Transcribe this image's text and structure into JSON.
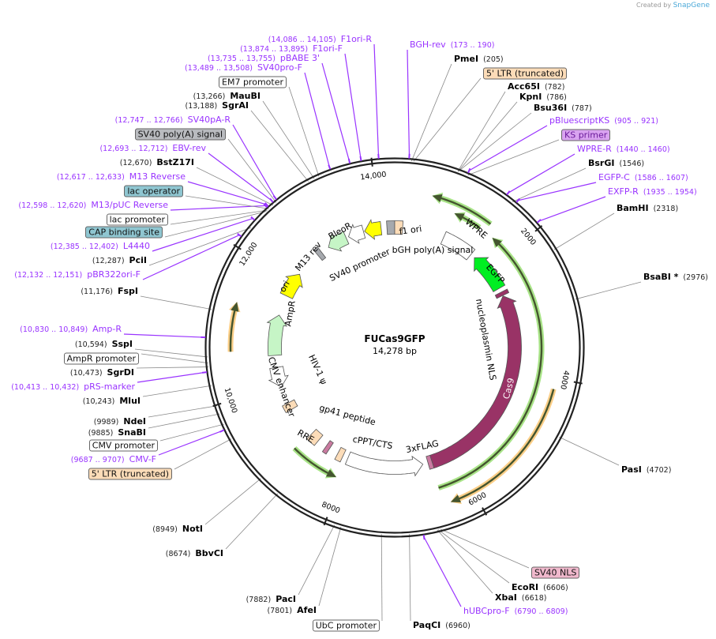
{
  "credit": {
    "prefix": "Created by",
    "brand": "SnapGene"
  },
  "plasmid": {
    "name": "FUCas9GFP",
    "length_label": "14,278 bp",
    "length_bp": 14278
  },
  "colors": {
    "primer": "#9933ff",
    "enzyme_line": "#888888",
    "backbone": "#222222"
  },
  "ticks": [
    "2000",
    "4000",
    "6000",
    "8000",
    "10,000",
    "12,000",
    "14,000"
  ],
  "tick_bp": [
    2000,
    4000,
    6000,
    8000,
    10000,
    12000,
    14000
  ],
  "labels": [
    {
      "name": "BGH-rev",
      "pos": "(173 .. 190)",
      "bp": 173,
      "kind": "primer"
    },
    {
      "name": "PmeI",
      "pos": "(205)",
      "bp": 205,
      "kind": "enzyme"
    },
    {
      "name": "5' LTR (truncated)",
      "bp": 230,
      "kind": "feature",
      "fill": "#fcdcb8"
    },
    {
      "name": "Acc65I",
      "pos": "(782)",
      "bp": 782,
      "kind": "enzyme"
    },
    {
      "name": "KpnI",
      "pos": "(786)",
      "bp": 786,
      "kind": "enzyme"
    },
    {
      "name": "Bsu36I",
      "pos": "(787)",
      "bp": 787,
      "kind": "enzyme"
    },
    {
      "name": "pBluescriptKS",
      "pos": "(905 .. 921)",
      "bp": 905,
      "kind": "primer"
    },
    {
      "name": "KS primer",
      "bp": 912,
      "kind": "feature",
      "fill": "#d9a3f0"
    },
    {
      "name": "WPRE-R",
      "pos": "(1440 .. 1460)",
      "bp": 1440,
      "kind": "primer"
    },
    {
      "name": "BsrGI",
      "pos": "(1546)",
      "bp": 1546,
      "kind": "enzyme"
    },
    {
      "name": "EGFP-C",
      "pos": "(1586 .. 1607)",
      "bp": 1586,
      "kind": "primer"
    },
    {
      "name": "EXFP-R",
      "pos": "(1935 .. 1954)",
      "bp": 1935,
      "kind": "primer"
    },
    {
      "name": "BamHI",
      "pos": "(2318)",
      "bp": 2318,
      "kind": "enzyme"
    },
    {
      "name": "BsaBI *",
      "pos": "(2976)",
      "bp": 2976,
      "kind": "enzyme"
    },
    {
      "name": "PasI",
      "pos": "(4702)",
      "bp": 4702,
      "kind": "enzyme"
    },
    {
      "name": "SV40 NLS",
      "bp": 6580,
      "kind": "feature",
      "fill": "#f0b8cc"
    },
    {
      "name": "EcoRI",
      "pos": "(6606)",
      "bp": 6606,
      "kind": "enzyme"
    },
    {
      "name": "XbaI",
      "pos": "(6618)",
      "bp": 6618,
      "kind": "enzyme"
    },
    {
      "name": "hUBCpro-F",
      "pos": "(6790 .. 6809)",
      "bp": 6790,
      "kind": "primer"
    },
    {
      "name": "PaqCI",
      "pos": "(6960)",
      "bp": 6960,
      "kind": "enzyme"
    },
    {
      "name": "UbC promoter",
      "bp": 7300,
      "kind": "feature",
      "fill": "#ffffff"
    },
    {
      "name": "AfeI",
      "pos": "(7801)",
      "bp": 7801,
      "kind": "enzyme"
    },
    {
      "name": "PacI",
      "pos": "(7882)",
      "bp": 7882,
      "kind": "enzyme"
    },
    {
      "name": "BbvCI",
      "pos": "(8674)",
      "bp": 8674,
      "kind": "enzyme"
    },
    {
      "name": "NotI",
      "pos": "(8949)",
      "bp": 8949,
      "kind": "enzyme"
    },
    {
      "name": "5' LTR (truncated)",
      "bp": 9550,
      "kind": "feature",
      "fill": "#fcdcb8"
    },
    {
      "name": "CMV-F",
      "pos": "(9687 .. 9707)",
      "bp": 9687,
      "kind": "primer"
    },
    {
      "name": "CMV promoter",
      "bp": 9750,
      "kind": "feature",
      "fill": "#ffffff"
    },
    {
      "name": "SnaBI",
      "pos": "(9885)",
      "bp": 9885,
      "kind": "enzyme"
    },
    {
      "name": "NdeI",
      "pos": "(9989)",
      "bp": 9989,
      "kind": "enzyme"
    },
    {
      "name": "MluI",
      "pos": "(10,243)",
      "bp": 10243,
      "kind": "enzyme"
    },
    {
      "name": "pRS-marker",
      "pos": "(10,413 .. 10,432)",
      "bp": 10413,
      "kind": "primer"
    },
    {
      "name": "SgrDI",
      "pos": "(10,473)",
      "bp": 10473,
      "kind": "enzyme"
    },
    {
      "name": "AmpR promoter",
      "bp": 10520,
      "kind": "feature",
      "fill": "#ffffff"
    },
    {
      "name": "SspI",
      "pos": "(10,594)",
      "bp": 10594,
      "kind": "enzyme"
    },
    {
      "name": "Amp-R",
      "pos": "(10,830 .. 10,849)",
      "bp": 10830,
      "kind": "primer"
    },
    {
      "name": "FspI",
      "pos": "(11,176)",
      "bp": 11176,
      "kind": "enzyme"
    },
    {
      "name": "pBR322ori-F",
      "pos": "(12,132 .. 12,151)",
      "bp": 12132,
      "kind": "primer"
    },
    {
      "name": "PciI",
      "pos": "(12,287)",
      "bp": 12287,
      "kind": "enzyme"
    },
    {
      "name": "L4440",
      "pos": "(12,385 .. 12,402)",
      "bp": 12385,
      "kind": "primer"
    },
    {
      "name": "CAP binding site",
      "bp": 12560,
      "kind": "feature",
      "fill": "#8fc6d1"
    },
    {
      "name": "lac promoter",
      "bp": 12580,
      "kind": "feature",
      "fill": "#ffffff"
    },
    {
      "name": "M13/pUC Reverse",
      "pos": "(12,598 .. 12,620)",
      "bp": 12598,
      "kind": "primer"
    },
    {
      "name": "lac operator",
      "bp": 12605,
      "kind": "feature",
      "fill": "#8fc6d1"
    },
    {
      "name": "M13 Reverse",
      "pos": "(12,617 .. 12,633)",
      "bp": 12617,
      "kind": "primer"
    },
    {
      "name": "BstZ17I",
      "pos": "(12,670)",
      "bp": 12670,
      "kind": "enzyme"
    },
    {
      "name": "EBV-rev",
      "pos": "(12,693 .. 12,712)",
      "bp": 12693,
      "kind": "primer"
    },
    {
      "name": "SV40 poly(A) signal",
      "bp": 12720,
      "kind": "feature",
      "fill": "#b9bbbf"
    },
    {
      "name": "SV40pA-R",
      "pos": "(12,747 .. 12,766)",
      "bp": 12747,
      "kind": "primer"
    },
    {
      "name": "SgrAI",
      "pos": "(13,188)",
      "bp": 13188,
      "kind": "enzyme"
    },
    {
      "name": "MauBI",
      "pos": "(13,266)",
      "bp": 13266,
      "kind": "enzyme"
    },
    {
      "name": "EM7 promoter",
      "bp": 13330,
      "kind": "feature",
      "fill": "#ffffff"
    },
    {
      "name": "SV40pro-F",
      "pos": "(13,489 .. 13,508)",
      "bp": 13489,
      "kind": "primer"
    },
    {
      "name": "pBABE 3'",
      "pos": "(13,735 .. 13,755)",
      "bp": 13735,
      "kind": "primer"
    },
    {
      "name": "F1ori-F",
      "pos": "(13,874 .. 13,895)",
      "bp": 13874,
      "kind": "primer"
    },
    {
      "name": "F1ori-R",
      "pos": "(14,086 .. 14,105)",
      "bp": 14086,
      "kind": "primer"
    }
  ],
  "features": [
    {
      "name": "f1 ori",
      "start": 13700,
      "end": 14020,
      "dir": -1,
      "fill": "#ffff00"
    },
    {
      "name": "bGH poly(A) signal",
      "start": 14130,
      "end": 14278,
      "dir": 0,
      "fill": "#a6a9ae"
    },
    {
      "name": "5' LTR",
      "start": 0,
      "end": 150,
      "dir": 0,
      "fill": "#fcdcb8"
    },
    {
      "name": "SV40 promoter",
      "start": 13380,
      "end": 13680,
      "dir": -1,
      "fill": "#ffffff"
    },
    {
      "name": "BleoR",
      "start": 12950,
      "end": 13330,
      "dir": -1,
      "fill": "#c6f5c6"
    },
    {
      "name": "M13 rev",
      "start": 12700,
      "end": 12790,
      "dir": 0,
      "fill": "#a6a9ae"
    },
    {
      "name": "ori",
      "start": 11720,
      "end": 12200,
      "dir": 1,
      "fill": "#ffff00"
    },
    {
      "name": "AmpR",
      "start": 10560,
      "end": 11330,
      "dir": 1,
      "fill": "#c6f5c6"
    },
    {
      "name": "CMV enhancer",
      "start": 9950,
      "end": 10330,
      "dir": -1,
      "fill": "#ffffff"
    },
    {
      "name": "HIV-1 ψ",
      "start": 9480,
      "end": 9620,
      "dir": 0,
      "fill": "#fcdcb8"
    },
    {
      "name": "RRE",
      "start": 8700,
      "end": 8880,
      "dir": 0,
      "fill": "#fcdcb8"
    },
    {
      "name": "gp41 peptide",
      "start": 8440,
      "end": 8520,
      "dir": 0,
      "fill": "#c97aa0"
    },
    {
      "name": "cPPT/CTS",
      "start": 8150,
      "end": 8260,
      "dir": 0,
      "fill": "#fcdcb8"
    },
    {
      "name": "UbC promoter",
      "start": 6600,
      "end": 8050,
      "dir": -1,
      "fill": "#ffffff"
    },
    {
      "name": "3xFLAG",
      "start": 6420,
      "end": 6500,
      "dir": 0,
      "fill": "#c97aa0"
    },
    {
      "name": "Cas9",
      "start": 2560,
      "end": 6420,
      "dir": -1,
      "fill": "#993366"
    },
    {
      "name": "nucleoplasmin NLS",
      "start": 2480,
      "end": 2550,
      "dir": 0,
      "fill": "#993366"
    },
    {
      "name": "EGFP",
      "start": 1650,
      "end": 2400,
      "dir": -1,
      "fill": "#00ee22"
    },
    {
      "name": "WPRE",
      "start": 950,
      "end": 1560,
      "dir": 0,
      "fill": "#ffffff"
    }
  ],
  "orfs": [
    {
      "start": 550,
      "end": 1500,
      "dir": -1,
      "color": "#9fe07a",
      "ring": 2
    },
    {
      "start": 950,
      "end": 1400,
      "dir": -1,
      "color": "#9fe07a",
      "ring": 1
    },
    {
      "start": 1650,
      "end": 6450,
      "dir": -1,
      "color": "#9fe07a",
      "ring": 1
    },
    {
      "start": 4150,
      "end": 6350,
      "dir": 1,
      "color": "#fbc97a",
      "ring": 3
    },
    {
      "start": 8100,
      "end": 8920,
      "dir": -1,
      "color": "#9fe07a",
      "ring": 0
    },
    {
      "start": 10650,
      "end": 11350,
      "dir": 1,
      "color": "#fbc97a",
      "ring": 3
    }
  ]
}
